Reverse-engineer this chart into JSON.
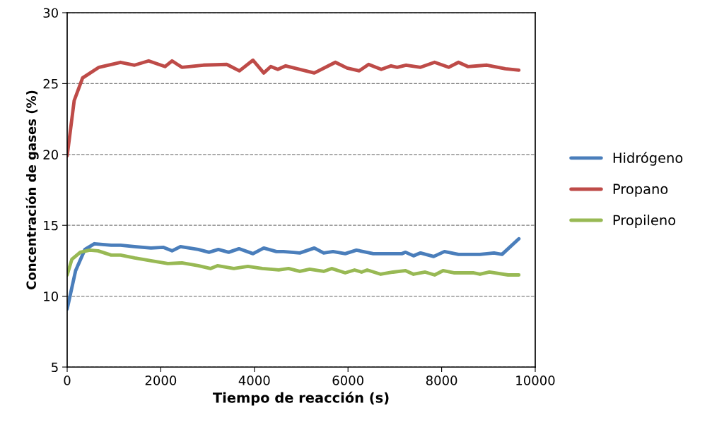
{
  "chart_data": {
    "type": "line",
    "xlabel": "Tiempo de reacción (s)",
    "ylabel": "Concentración de gases (%)",
    "xlim": [
      0,
      10000
    ],
    "xticks": [
      0,
      2000,
      4000,
      6000,
      8000,
      10000
    ],
    "ylim": [
      5,
      30
    ],
    "yticks": [
      5,
      10,
      15,
      20,
      25,
      30
    ],
    "grid": "y",
    "legend": "right",
    "line_style": "solid",
    "marker": "none",
    "series": [
      {
        "name": "Hidrógeno",
        "color": "#4a7ebb",
        "x": [
          0,
          180,
          380,
          580,
          940,
          1140,
          1440,
          1790,
          2050,
          2240,
          2420,
          2800,
          3030,
          3230,
          3450,
          3670,
          3970,
          4200,
          4470,
          4620,
          4970,
          5280,
          5480,
          5680,
          5940,
          6180,
          6540,
          7150,
          7230,
          7400,
          7550,
          7830,
          8060,
          8360,
          8820,
          9120,
          9290,
          9650
        ],
        "values": [
          9.1,
          11.8,
          13.3,
          13.7,
          13.6,
          13.6,
          13.5,
          13.4,
          13.45,
          13.2,
          13.5,
          13.3,
          13.1,
          13.3,
          13.1,
          13.35,
          13.0,
          13.4,
          13.15,
          13.15,
          13.05,
          13.4,
          13.05,
          13.15,
          13.0,
          13.25,
          13.0,
          13.0,
          13.1,
          12.85,
          13.05,
          12.8,
          13.15,
          12.95,
          12.95,
          13.05,
          12.95,
          14.05
        ]
      },
      {
        "name": "Propano",
        "color": "#be4b48",
        "x": [
          0,
          150,
          330,
          680,
          1140,
          1440,
          1740,
          2090,
          2240,
          2450,
          2910,
          3410,
          3680,
          3970,
          4200,
          4350,
          4500,
          4670,
          5280,
          5730,
          5980,
          6240,
          6440,
          6710,
          6920,
          7050,
          7240,
          7550,
          7850,
          8150,
          8360,
          8560,
          8970,
          9360,
          9650
        ],
        "values": [
          19.9,
          23.8,
          25.4,
          26.15,
          26.5,
          26.3,
          26.6,
          26.2,
          26.6,
          26.15,
          26.3,
          26.35,
          25.9,
          26.65,
          25.75,
          26.2,
          26.0,
          26.25,
          25.75,
          26.5,
          26.1,
          25.9,
          26.35,
          26.0,
          26.25,
          26.15,
          26.3,
          26.15,
          26.5,
          26.15,
          26.5,
          26.2,
          26.3,
          26.05,
          25.95
        ]
      },
      {
        "name": "Propileno",
        "color": "#98b954",
        "x": [
          0,
          100,
          280,
          480,
          660,
          940,
          1140,
          1440,
          1790,
          2150,
          2450,
          2800,
          3060,
          3210,
          3560,
          3860,
          4170,
          4520,
          4730,
          4970,
          5180,
          5480,
          5650,
          5940,
          6140,
          6290,
          6410,
          6700,
          6960,
          7230,
          7400,
          7650,
          7850,
          8030,
          8260,
          8670,
          8820,
          9020,
          9420,
          9650
        ],
        "values": [
          11.5,
          12.6,
          13.1,
          13.25,
          13.2,
          12.9,
          12.9,
          12.7,
          12.5,
          12.3,
          12.35,
          12.15,
          11.95,
          12.15,
          11.95,
          12.1,
          11.95,
          11.85,
          11.95,
          11.75,
          11.9,
          11.75,
          11.95,
          11.65,
          11.85,
          11.7,
          11.85,
          11.55,
          11.7,
          11.8,
          11.55,
          11.7,
          11.5,
          11.8,
          11.65,
          11.65,
          11.55,
          11.7,
          11.5,
          11.5
        ]
      }
    ]
  }
}
